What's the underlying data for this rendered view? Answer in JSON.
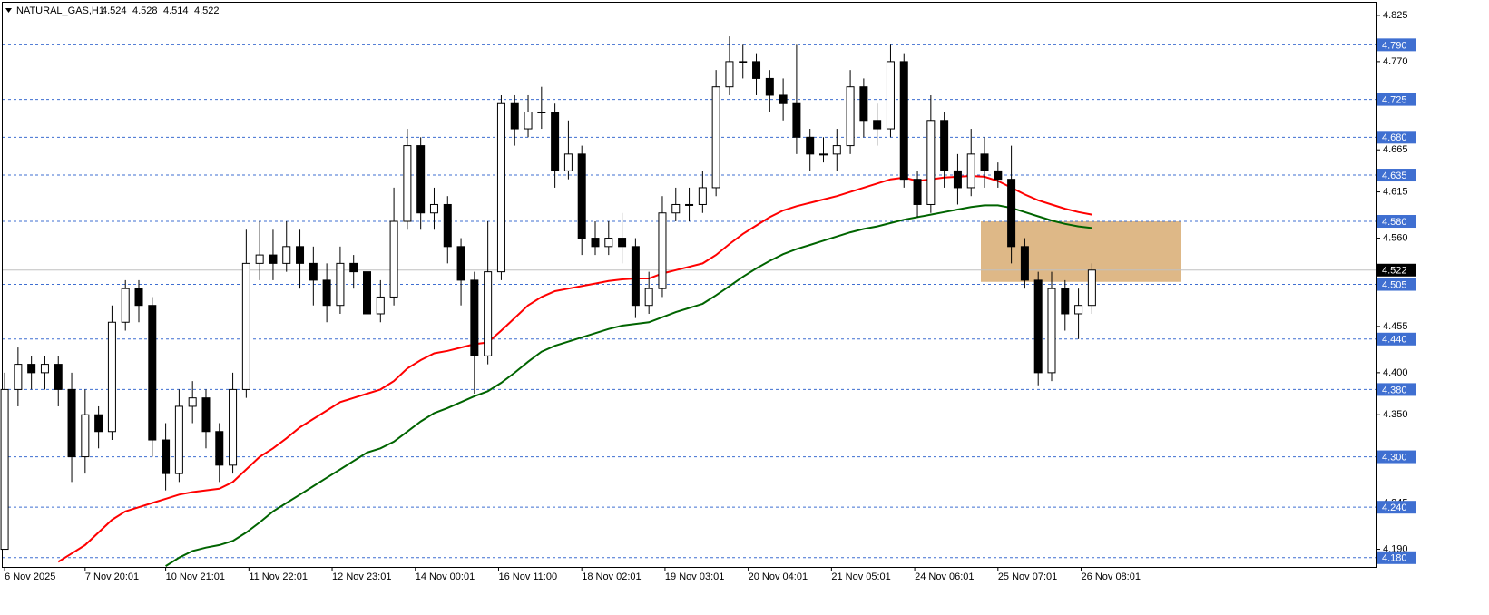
{
  "chart_data": {
    "type": "candlestick",
    "title": "NATURAL_GAS,H1",
    "quote": [
      4.524,
      4.528,
      4.514,
      4.522
    ],
    "xlim": [
      -0.14,
      102.2
    ],
    "xticks": [
      {
        "value": 0,
        "label": "6 Nov 2025"
      },
      {
        "value": 6,
        "label": "7 Nov 20:01"
      },
      {
        "value": 12,
        "label": "10 Nov 21:01"
      },
      {
        "value": 18.2,
        "label": "11 Nov 22:01"
      },
      {
        "value": 24.4,
        "label": "12 Nov 23:01"
      },
      {
        "value": 30.6,
        "label": "14 Nov 00:01"
      },
      {
        "value": 36.8,
        "label": "16 Nov 11:00"
      },
      {
        "value": 43,
        "label": "18 Nov 02:01"
      },
      {
        "value": 49.2,
        "label": "19 Nov 03:01"
      },
      {
        "value": 55.4,
        "label": "20 Nov 04:01"
      },
      {
        "value": 61.6,
        "label": "21 Nov 05:01"
      },
      {
        "value": 67.8,
        "label": "24 Nov 06:01"
      },
      {
        "value": 74,
        "label": "25 Nov 07:01"
      },
      {
        "value": 80.2,
        "label": "26 Nov 08:01"
      }
    ],
    "ylim": [
      4.169,
      4.84
    ],
    "yticks": [
      4.825,
      {
        "value": 4.77,
        "label": "4.770"
      },
      4.665,
      4.615,
      {
        "value": 4.56,
        "label": "4.560"
      },
      4.455,
      {
        "value": 4.4,
        "label": "4.400"
      },
      {
        "value": 4.35,
        "label": "4.350"
      },
      4.245,
      {
        "value": 4.19,
        "label": "4.190"
      }
    ],
    "open": [
      4.19,
      4.38,
      4.41,
      4.4,
      4.41,
      4.38,
      4.3,
      4.35,
      4.33,
      4.46,
      4.5,
      4.48,
      4.32,
      4.28,
      4.36,
      4.37,
      4.33,
      4.29,
      4.38,
      4.53,
      4.54,
      4.53,
      4.55,
      4.53,
      4.51,
      4.48,
      4.53,
      4.52,
      4.47,
      4.49,
      4.58,
      4.67,
      4.59,
      4.6,
      4.55,
      4.51,
      4.42,
      4.52,
      4.72,
      4.69,
      4.71,
      4.71,
      4.64,
      4.66,
      4.56,
      4.55,
      4.56,
      4.55,
      4.48,
      4.5,
      4.59,
      4.6,
      4.6,
      4.62,
      4.74,
      4.77,
      4.77,
      4.75,
      4.73,
      4.72,
      4.68,
      4.66,
      4.66,
      4.67,
      4.74,
      4.7,
      4.69,
      4.77,
      4.63,
      4.6,
      4.7,
      4.64,
      4.62,
      4.66,
      4.64,
      4.63,
      4.55,
      4.51,
      4.4,
      4.5,
      4.47,
      4.48
    ],
    "high": [
      4.4,
      4.43,
      4.42,
      4.42,
      4.42,
      4.4,
      4.38,
      4.36,
      4.48,
      4.51,
      4.51,
      4.49,
      4.34,
      4.38,
      4.39,
      4.38,
      4.34,
      4.4,
      4.57,
      4.58,
      4.57,
      4.58,
      4.57,
      4.55,
      4.53,
      4.55,
      4.54,
      4.53,
      4.51,
      4.62,
      4.69,
      4.68,
      4.62,
      4.61,
      4.56,
      4.52,
      4.58,
      4.73,
      4.73,
      4.73,
      4.74,
      4.72,
      4.7,
      4.67,
      4.58,
      4.58,
      4.59,
      4.56,
      4.52,
      4.61,
      4.62,
      4.62,
      4.64,
      4.76,
      4.8,
      4.79,
      4.78,
      4.76,
      4.75,
      4.79,
      4.69,
      4.68,
      4.69,
      4.76,
      4.75,
      4.72,
      4.79,
      4.78,
      4.64,
      4.73,
      4.71,
      4.66,
      4.69,
      4.68,
      4.65,
      4.67,
      4.56,
      4.52,
      4.52,
      4.51,
      4.5,
      4.53
    ],
    "low": [
      4.19,
      4.36,
      4.38,
      4.38,
      4.36,
      4.27,
      4.28,
      4.31,
      4.32,
      4.45,
      4.46,
      4.3,
      4.26,
      4.27,
      4.34,
      4.31,
      4.27,
      4.28,
      4.37,
      4.51,
      4.51,
      4.52,
      4.5,
      4.48,
      4.46,
      4.47,
      4.5,
      4.45,
      4.46,
      4.48,
      4.57,
      4.57,
      4.57,
      4.53,
      4.48,
      4.375,
      4.41,
      4.51,
      4.67,
      4.68,
      4.69,
      4.62,
      4.63,
      4.54,
      4.54,
      4.54,
      4.53,
      4.465,
      4.47,
      4.49,
      4.58,
      4.58,
      4.59,
      4.61,
      4.73,
      4.75,
      4.73,
      4.71,
      4.7,
      4.66,
      4.64,
      4.65,
      4.64,
      4.66,
      4.68,
      4.67,
      4.68,
      4.62,
      4.585,
      4.59,
      4.62,
      4.6,
      4.61,
      4.62,
      4.62,
      4.53,
      4.5,
      4.385,
      4.39,
      4.45,
      4.44,
      4.47
    ],
    "close": [
      4.38,
      4.41,
      4.4,
      4.41,
      4.38,
      4.3,
      4.35,
      4.33,
      4.46,
      4.5,
      4.48,
      4.32,
      4.28,
      4.36,
      4.37,
      4.33,
      4.29,
      4.38,
      4.53,
      4.54,
      4.53,
      4.55,
      4.53,
      4.51,
      4.48,
      4.53,
      4.52,
      4.47,
      4.49,
      4.58,
      4.67,
      4.59,
      4.6,
      4.55,
      4.51,
      4.42,
      4.52,
      4.72,
      4.69,
      4.71,
      4.71,
      4.64,
      4.66,
      4.56,
      4.55,
      4.56,
      4.55,
      4.48,
      4.5,
      4.59,
      4.6,
      4.6,
      4.62,
      4.74,
      4.77,
      4.77,
      4.75,
      4.73,
      4.72,
      4.68,
      4.66,
      4.66,
      4.67,
      4.74,
      4.7,
      4.69,
      4.77,
      4.63,
      4.6,
      4.7,
      4.64,
      4.62,
      4.66,
      4.64,
      4.63,
      4.55,
      4.51,
      4.4,
      4.5,
      4.47,
      4.48,
      4.522
    ],
    "lines": [
      {
        "color": "#ff0000",
        "values": [
          null,
          null,
          null,
          null,
          4.175,
          4.185,
          4.195,
          4.21,
          4.225,
          4.235,
          4.24,
          4.245,
          4.25,
          4.255,
          4.258,
          4.26,
          4.262,
          4.27,
          4.285,
          4.3,
          4.31,
          4.322,
          4.335,
          4.345,
          4.355,
          4.365,
          4.37,
          4.375,
          4.38,
          4.39,
          4.405,
          4.415,
          4.423,
          4.426,
          4.43,
          4.434,
          4.436,
          4.45,
          4.465,
          4.48,
          4.49,
          4.497,
          4.5,
          4.503,
          4.506,
          4.509,
          4.511,
          4.512,
          4.512,
          4.518,
          4.522,
          4.526,
          4.53,
          4.54,
          4.553,
          4.565,
          4.575,
          4.585,
          4.593,
          4.598,
          4.602,
          4.606,
          4.61,
          4.615,
          4.62,
          4.625,
          4.63,
          4.632,
          4.628,
          4.63,
          4.632,
          4.633,
          4.634,
          4.633,
          4.628,
          4.62,
          4.612,
          4.605,
          4.6,
          4.595,
          4.591,
          4.588
        ]
      },
      {
        "color": "#006400",
        "values": [
          null,
          null,
          null,
          null,
          null,
          null,
          null,
          null,
          null,
          null,
          null,
          null,
          4.17,
          4.18,
          4.188,
          4.192,
          4.195,
          4.2,
          4.21,
          4.222,
          4.235,
          4.245,
          4.255,
          4.265,
          4.275,
          4.285,
          4.295,
          4.305,
          4.31,
          4.318,
          4.33,
          4.342,
          4.352,
          4.358,
          4.365,
          4.372,
          4.378,
          4.388,
          4.4,
          4.413,
          4.425,
          4.432,
          4.437,
          4.442,
          4.447,
          4.452,
          4.456,
          4.458,
          4.46,
          4.466,
          4.472,
          4.477,
          4.482,
          4.492,
          4.503,
          4.514,
          4.524,
          4.533,
          4.541,
          4.547,
          4.552,
          4.557,
          4.562,
          4.567,
          4.571,
          4.574,
          4.578,
          4.582,
          4.585,
          4.588,
          4.591,
          4.594,
          4.597,
          4.599,
          4.599,
          4.596,
          4.591,
          4.586,
          4.581,
          4.577,
          4.574,
          4.572
        ]
      }
    ],
    "levels": [
      {
        "value": 4.79,
        "label": "4.790"
      },
      {
        "value": 4.725,
        "label": "4.725"
      },
      {
        "value": 4.68,
        "label": "4.680"
      },
      {
        "value": 4.635,
        "label": "4.635"
      },
      {
        "value": 4.58,
        "label": "4.580"
      },
      {
        "value": 4.505,
        "label": "4.505"
      },
      {
        "value": 4.44,
        "label": "4.440"
      },
      {
        "value": 4.38,
        "label": "4.380"
      },
      {
        "value": 4.3,
        "label": "4.300"
      },
      {
        "value": 4.24,
        "label": "4.240"
      },
      {
        "value": 4.18,
        "label": "4.180"
      }
    ],
    "level_color": "#3f6fd1",
    "current_price": 4.522,
    "zone": {
      "top": 4.58,
      "bottom": 4.508,
      "color": "#deb887"
    }
  }
}
